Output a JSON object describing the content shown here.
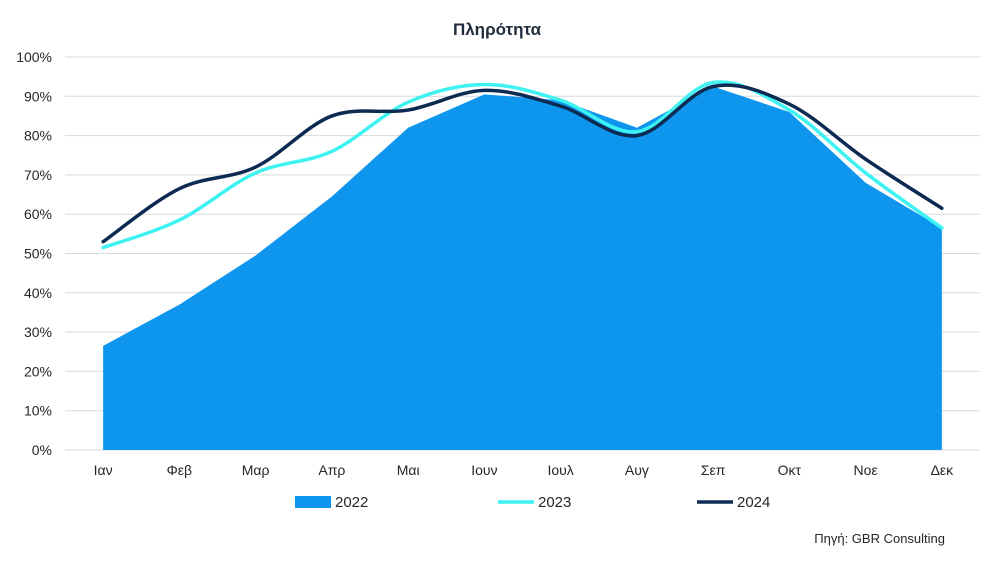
{
  "chart_data": {
    "type": "area",
    "title": "Πληρότητα",
    "categories": [
      "Ιαν",
      "Φεβ",
      "Μαρ",
      "Απρ",
      "Μαι",
      "Ιουν",
      "Ιουλ",
      "Αυγ",
      "Σεπ",
      "Οκτ",
      "Νοε",
      "Δεκ"
    ],
    "series": [
      {
        "name": "2022",
        "kind": "area",
        "color": "#0e96ee",
        "values": [
          26.5,
          37,
          49.5,
          64.5,
          82,
          90.5,
          89,
          82,
          92.5,
          86,
          68,
          56.5
        ]
      },
      {
        "name": "2023",
        "kind": "line",
        "color": "#3ef2f2",
        "values": [
          51.5,
          58.5,
          70.5,
          76,
          88.5,
          93,
          89,
          81,
          93.5,
          86.5,
          70.5,
          56.5
        ]
      },
      {
        "name": "2024",
        "kind": "line",
        "color": "#0c2a52",
        "values": [
          53,
          66.5,
          72,
          85,
          86.5,
          91.5,
          87.5,
          80,
          92.5,
          88,
          74,
          61.5
        ]
      }
    ],
    "yticks": [
      "0%",
      "10%",
      "20%",
      "30%",
      "40%",
      "50%",
      "60%",
      "70%",
      "80%",
      "90%",
      "100%"
    ],
    "ylim": [
      0,
      100
    ],
    "grid": true,
    "legend": "bottom",
    "xlabel": "",
    "ylabel": ""
  },
  "source": "Πηγή: GBR Consulting"
}
